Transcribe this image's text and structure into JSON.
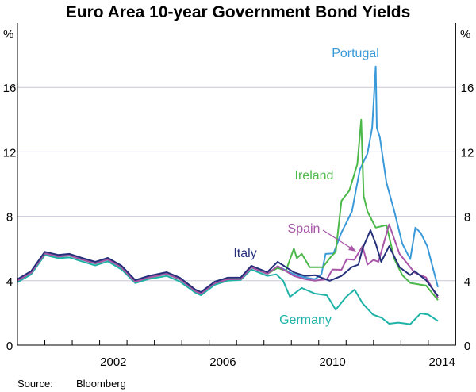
{
  "chart_data": {
    "type": "line",
    "title": "Euro Area 10-year Government Bond Yields",
    "ylabel_left": "%",
    "ylabel_right": "%",
    "ylim": [
      0,
      20
    ],
    "yticks": [
      0,
      4,
      8,
      12,
      16
    ],
    "xlim": [
      1999,
      2015
    ],
    "xtick_labels": [
      "2002",
      "2006",
      "2010",
      "2014"
    ],
    "grid": true,
    "source": "Source:",
    "source_name": "Bloomberg",
    "series": [
      {
        "name": "Germany",
        "color": "#1fb3a8",
        "points": [
          [
            1999.0,
            3.9
          ],
          [
            1999.5,
            4.4
          ],
          [
            2000.0,
            5.6
          ],
          [
            2000.5,
            5.4
          ],
          [
            2000.9,
            5.45
          ],
          [
            2001.35,
            5.2
          ],
          [
            2001.84,
            4.95
          ],
          [
            2002.3,
            5.2
          ],
          [
            2002.8,
            4.7
          ],
          [
            2003.3,
            3.85
          ],
          [
            2003.77,
            4.1
          ],
          [
            2004.45,
            4.3
          ],
          [
            2004.93,
            3.95
          ],
          [
            2005.5,
            3.25
          ],
          [
            2005.7,
            3.1
          ],
          [
            2006.2,
            3.75
          ],
          [
            2006.67,
            4.0
          ],
          [
            2007.15,
            4.05
          ],
          [
            2007.54,
            4.7
          ],
          [
            2008.12,
            4.3
          ],
          [
            2008.45,
            4.4
          ],
          [
            2008.7,
            4.0
          ],
          [
            2008.95,
            3.0
          ],
          [
            2009.38,
            3.55
          ],
          [
            2009.86,
            3.2
          ],
          [
            2010.3,
            3.1
          ],
          [
            2010.62,
            2.2
          ],
          [
            2011.0,
            3.0
          ],
          [
            2011.31,
            3.45
          ],
          [
            2011.6,
            2.6
          ],
          [
            2011.98,
            1.9
          ],
          [
            2012.3,
            1.7
          ],
          [
            2012.57,
            1.33
          ],
          [
            2012.9,
            1.4
          ],
          [
            2013.34,
            1.3
          ],
          [
            2013.72,
            1.97
          ],
          [
            2014.0,
            1.9
          ],
          [
            2014.35,
            1.5
          ]
        ]
      },
      {
        "name": "Portugal",
        "color": "#3a9ad9",
        "points": [
          [
            1999.0,
            4.0
          ],
          [
            1999.5,
            4.5
          ],
          [
            2000.0,
            5.7
          ],
          [
            2000.5,
            5.5
          ],
          [
            2000.9,
            5.57
          ],
          [
            2001.35,
            5.32
          ],
          [
            2001.84,
            5.07
          ],
          [
            2002.3,
            5.32
          ],
          [
            2002.8,
            4.83
          ],
          [
            2003.3,
            3.94
          ],
          [
            2003.77,
            4.19
          ],
          [
            2004.45,
            4.43
          ],
          [
            2004.93,
            4.09
          ],
          [
            2005.5,
            3.35
          ],
          [
            2005.7,
            3.2
          ],
          [
            2006.2,
            3.84
          ],
          [
            2006.67,
            4.09
          ],
          [
            2007.15,
            4.1
          ],
          [
            2007.54,
            4.83
          ],
          [
            2008.12,
            4.43
          ],
          [
            2008.5,
            4.9
          ],
          [
            2009.09,
            4.4
          ],
          [
            2009.5,
            4.2
          ],
          [
            2009.86,
            4.1
          ],
          [
            2010.1,
            4.4
          ],
          [
            2010.25,
            5.67
          ],
          [
            2010.54,
            5.7
          ],
          [
            2010.83,
            7.0
          ],
          [
            2011.21,
            8.3
          ],
          [
            2011.5,
            10.9
          ],
          [
            2011.78,
            11.9
          ],
          [
            2011.95,
            13.5
          ],
          [
            2012.08,
            17.3
          ],
          [
            2012.12,
            13.5
          ],
          [
            2012.23,
            12.9
          ],
          [
            2012.47,
            10.1
          ],
          [
            2012.76,
            8.3
          ],
          [
            2013.05,
            6.3
          ],
          [
            2013.34,
            5.34
          ],
          [
            2013.53,
            7.3
          ],
          [
            2013.72,
            6.98
          ],
          [
            2013.96,
            6.15
          ],
          [
            2014.35,
            3.6
          ]
        ]
      },
      {
        "name": "Ireland",
        "color": "#4cb849",
        "points": [
          [
            1999.0,
            4.0
          ],
          [
            1999.5,
            4.5
          ],
          [
            2000.0,
            5.7
          ],
          [
            2000.5,
            5.5
          ],
          [
            2000.9,
            5.57
          ],
          [
            2001.35,
            5.32
          ],
          [
            2001.84,
            5.07
          ],
          [
            2002.3,
            5.32
          ],
          [
            2002.8,
            4.83
          ],
          [
            2003.3,
            3.94
          ],
          [
            2003.77,
            4.19
          ],
          [
            2004.45,
            4.43
          ],
          [
            2004.93,
            4.09
          ],
          [
            2005.5,
            3.35
          ],
          [
            2005.7,
            3.2
          ],
          [
            2006.2,
            3.84
          ],
          [
            2006.67,
            4.09
          ],
          [
            2007.15,
            4.1
          ],
          [
            2007.54,
            4.83
          ],
          [
            2008.12,
            4.43
          ],
          [
            2008.5,
            4.8
          ],
          [
            2008.8,
            4.6
          ],
          [
            2009.09,
            6.0
          ],
          [
            2009.2,
            5.4
          ],
          [
            2009.38,
            5.67
          ],
          [
            2009.67,
            4.84
          ],
          [
            2010.15,
            4.84
          ],
          [
            2010.45,
            5.5
          ],
          [
            2010.62,
            5.8
          ],
          [
            2010.83,
            8.96
          ],
          [
            2011.12,
            9.6
          ],
          [
            2011.41,
            11.25
          ],
          [
            2011.55,
            14.0
          ],
          [
            2011.64,
            9.27
          ],
          [
            2011.78,
            8.3
          ],
          [
            2012.08,
            7.3
          ],
          [
            2012.47,
            7.46
          ],
          [
            2012.76,
            5.34
          ],
          [
            2013.05,
            4.35
          ],
          [
            2013.34,
            3.86
          ],
          [
            2013.92,
            3.7
          ],
          [
            2014.35,
            2.8
          ]
        ]
      },
      {
        "name": "Spain",
        "color": "#a855a8",
        "points": [
          [
            1999.0,
            4.0
          ],
          [
            1999.5,
            4.5
          ],
          [
            2000.0,
            5.7
          ],
          [
            2000.5,
            5.5
          ],
          [
            2000.9,
            5.57
          ],
          [
            2001.35,
            5.32
          ],
          [
            2001.84,
            5.07
          ],
          [
            2002.3,
            5.32
          ],
          [
            2002.8,
            4.83
          ],
          [
            2003.3,
            3.94
          ],
          [
            2003.77,
            4.19
          ],
          [
            2004.45,
            4.43
          ],
          [
            2004.93,
            4.09
          ],
          [
            2005.5,
            3.35
          ],
          [
            2005.7,
            3.2
          ],
          [
            2006.2,
            3.84
          ],
          [
            2006.67,
            4.09
          ],
          [
            2007.15,
            4.1
          ],
          [
            2007.54,
            4.83
          ],
          [
            2008.12,
            4.43
          ],
          [
            2008.5,
            4.9
          ],
          [
            2009.09,
            4.3
          ],
          [
            2009.5,
            4.1
          ],
          [
            2009.86,
            4.0
          ],
          [
            2010.3,
            4.1
          ],
          [
            2010.5,
            4.7
          ],
          [
            2010.83,
            4.68
          ],
          [
            2011.02,
            5.34
          ],
          [
            2011.3,
            5.3
          ],
          [
            2011.6,
            6.15
          ],
          [
            2011.78,
            5.0
          ],
          [
            2012.0,
            5.3
          ],
          [
            2012.18,
            5.17
          ],
          [
            2012.57,
            7.5
          ],
          [
            2012.95,
            5.67
          ],
          [
            2013.5,
            4.5
          ],
          [
            2013.92,
            4.2
          ],
          [
            2014.35,
            2.93
          ]
        ]
      },
      {
        "name": "Italy",
        "color": "#26307a",
        "points": [
          [
            1999.0,
            4.1
          ],
          [
            1999.5,
            4.6
          ],
          [
            2000.0,
            5.8
          ],
          [
            2000.5,
            5.6
          ],
          [
            2000.9,
            5.67
          ],
          [
            2001.35,
            5.42
          ],
          [
            2001.84,
            5.17
          ],
          [
            2002.3,
            5.42
          ],
          [
            2002.8,
            4.93
          ],
          [
            2003.3,
            4.04
          ],
          [
            2003.77,
            4.29
          ],
          [
            2004.45,
            4.53
          ],
          [
            2004.93,
            4.19
          ],
          [
            2005.5,
            3.45
          ],
          [
            2005.7,
            3.3
          ],
          [
            2006.2,
            3.94
          ],
          [
            2006.67,
            4.19
          ],
          [
            2007.15,
            4.2
          ],
          [
            2007.54,
            4.93
          ],
          [
            2008.12,
            4.53
          ],
          [
            2008.5,
            5.17
          ],
          [
            2009.09,
            4.52
          ],
          [
            2009.5,
            4.3
          ],
          [
            2009.86,
            4.35
          ],
          [
            2010.4,
            4.0
          ],
          [
            2010.83,
            4.3
          ],
          [
            2011.2,
            4.84
          ],
          [
            2011.45,
            5.0
          ],
          [
            2011.6,
            6.0
          ],
          [
            2011.89,
            7.14
          ],
          [
            2012.08,
            6.3
          ],
          [
            2012.28,
            5.17
          ],
          [
            2012.57,
            6.15
          ],
          [
            2012.95,
            4.84
          ],
          [
            2013.34,
            4.35
          ],
          [
            2013.5,
            4.6
          ],
          [
            2013.92,
            4.03
          ],
          [
            2014.35,
            3.05
          ]
        ]
      }
    ]
  }
}
